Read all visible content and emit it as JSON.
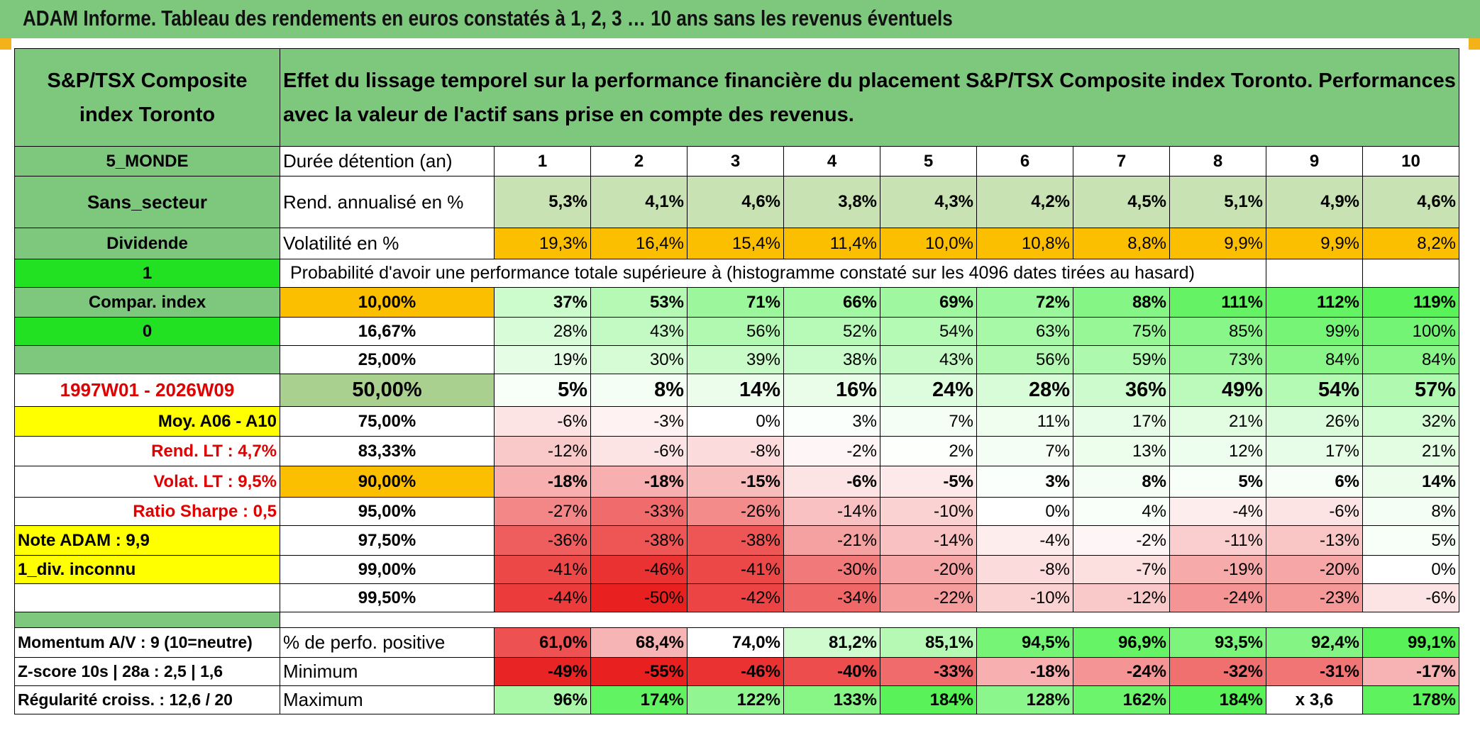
{
  "title": "ADAM Informe. Tableau des rendements en euros constatés à 1, 2, 3 … 10 ans sans les revenus éventuels",
  "header": {
    "index_name": "S&P/TSX Composite index Toronto",
    "description": "Effet du lissage temporel sur la performance financière du placement S&P/TSX Composite index Toronto. Performances avec la valeur de l'actif sans prise en compte des revenus."
  },
  "left": {
    "region": "5_MONDE",
    "sector": "Sans_secteur",
    "dividend": "Dividende",
    "flag1": "1",
    "compar": "Compar. index",
    "flag0": "0",
    "period": "1997W01 - 2026W09",
    "moy": "Moy. A06 - A10",
    "rend_lt": "Rend. LT :   4,7%",
    "volat_lt": "Volat. LT :   9,5%",
    "sharpe": "Ratio Sharpe :   0,5",
    "note": "Note ADAM : 9,9",
    "div": "1_div. inconnu",
    "momentum": "Momentum A/V : 9 (10=neutre)",
    "zscore": "Z-score 10s | 28a : 2,5 | 1,6",
    "regularite": "Régularité croiss. : 12,6 / 20"
  },
  "labels": {
    "duree": "Durée détention (an)",
    "rend": "Rend. annualisé en %",
    "vol": "Volatilité en %",
    "prob": "Probabilité d'avoir une performance totale supérieure à (histogramme constaté sur les 4096 dates tirées au hasard)",
    "pos": "% de perfo. positive",
    "min": "Minimum",
    "max": "Maximum"
  },
  "years": [
    "1",
    "2",
    "3",
    "4",
    "5",
    "6",
    "7",
    "8",
    "9",
    "10"
  ],
  "rend": [
    "5,3%",
    "4,1%",
    "4,6%",
    "3,8%",
    "4,3%",
    "4,2%",
    "4,5%",
    "5,1%",
    "4,9%",
    "4,6%"
  ],
  "vol": [
    "19,3%",
    "16,4%",
    "15,4%",
    "11,4%",
    "10,0%",
    "10,8%",
    "8,8%",
    "9,9%",
    "9,9%",
    "8,2%"
  ],
  "percentiles": [
    {
      "p": "10,00%",
      "v": [
        "37%",
        "53%",
        "71%",
        "66%",
        "69%",
        "72%",
        "88%",
        "111%",
        "112%",
        "119%"
      ]
    },
    {
      "p": "16,67%",
      "v": [
        "28%",
        "43%",
        "56%",
        "52%",
        "54%",
        "63%",
        "75%",
        "85%",
        "99%",
        "100%"
      ]
    },
    {
      "p": "25,00%",
      "v": [
        "19%",
        "30%",
        "39%",
        "38%",
        "43%",
        "56%",
        "59%",
        "73%",
        "84%",
        "84%"
      ]
    },
    {
      "p": "50,00%",
      "v": [
        "5%",
        "8%",
        "14%",
        "16%",
        "24%",
        "28%",
        "36%",
        "49%",
        "54%",
        "57%"
      ]
    },
    {
      "p": "75,00%",
      "v": [
        "-6%",
        "-3%",
        "0%",
        "3%",
        "7%",
        "11%",
        "17%",
        "21%",
        "26%",
        "32%"
      ]
    },
    {
      "p": "83,33%",
      "v": [
        "-12%",
        "-6%",
        "-8%",
        "-2%",
        "2%",
        "7%",
        "13%",
        "12%",
        "17%",
        "21%"
      ]
    },
    {
      "p": "90,00%",
      "v": [
        "-18%",
        "-18%",
        "-15%",
        "-6%",
        "-5%",
        "3%",
        "8%",
        "5%",
        "6%",
        "14%"
      ]
    },
    {
      "p": "95,00%",
      "v": [
        "-27%",
        "-33%",
        "-26%",
        "-14%",
        "-10%",
        "0%",
        "4%",
        "-4%",
        "-6%",
        "8%"
      ]
    },
    {
      "p": "97,50%",
      "v": [
        "-36%",
        "-38%",
        "-38%",
        "-21%",
        "-14%",
        "-4%",
        "-2%",
        "-11%",
        "-13%",
        "5%"
      ]
    },
    {
      "p": "99,00%",
      "v": [
        "-41%",
        "-46%",
        "-41%",
        "-30%",
        "-20%",
        "-8%",
        "-7%",
        "-19%",
        "-20%",
        "0%"
      ]
    },
    {
      "p": "99,50%",
      "v": [
        "-44%",
        "-50%",
        "-42%",
        "-34%",
        "-22%",
        "-10%",
        "-12%",
        "-24%",
        "-23%",
        "-6%"
      ]
    }
  ],
  "pos": [
    "61,0%",
    "68,4%",
    "74,0%",
    "81,2%",
    "85,1%",
    "94,5%",
    "96,9%",
    "93,5%",
    "92,4%",
    "99,1%"
  ],
  "min": [
    "-49%",
    "-55%",
    "-46%",
    "-40%",
    "-33%",
    "-18%",
    "-24%",
    "-32%",
    "-31%",
    "-17%"
  ],
  "max": [
    "96%",
    "174%",
    "122%",
    "133%",
    "184%",
    "128%",
    "162%",
    "184%",
    "x 3,6",
    "178%"
  ],
  "colors": {
    "header_green": "#7ec87e",
    "bright_green": "#22e022",
    "orange": "#fbbf00",
    "yellow": "#ffff00",
    "red_text": "#e00000"
  }
}
